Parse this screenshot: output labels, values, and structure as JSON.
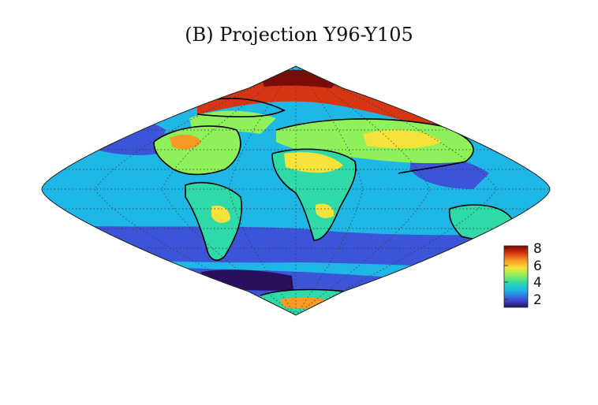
{
  "title": "(B) Projection Y96-Y105",
  "map": {
    "projection": "sinusoidal",
    "graticule": "dotted",
    "coastlines": true,
    "field": "contour-filled"
  },
  "colorbar": {
    "ticks": [
      "8",
      "6",
      "4",
      "2"
    ],
    "colors": [
      "#2a0f5e",
      "#3f4fd8",
      "#1fb6e6",
      "#2fd9a8",
      "#8ef05a",
      "#f5e23a",
      "#f79a24",
      "#d63513",
      "#7a0b06"
    ]
  }
}
